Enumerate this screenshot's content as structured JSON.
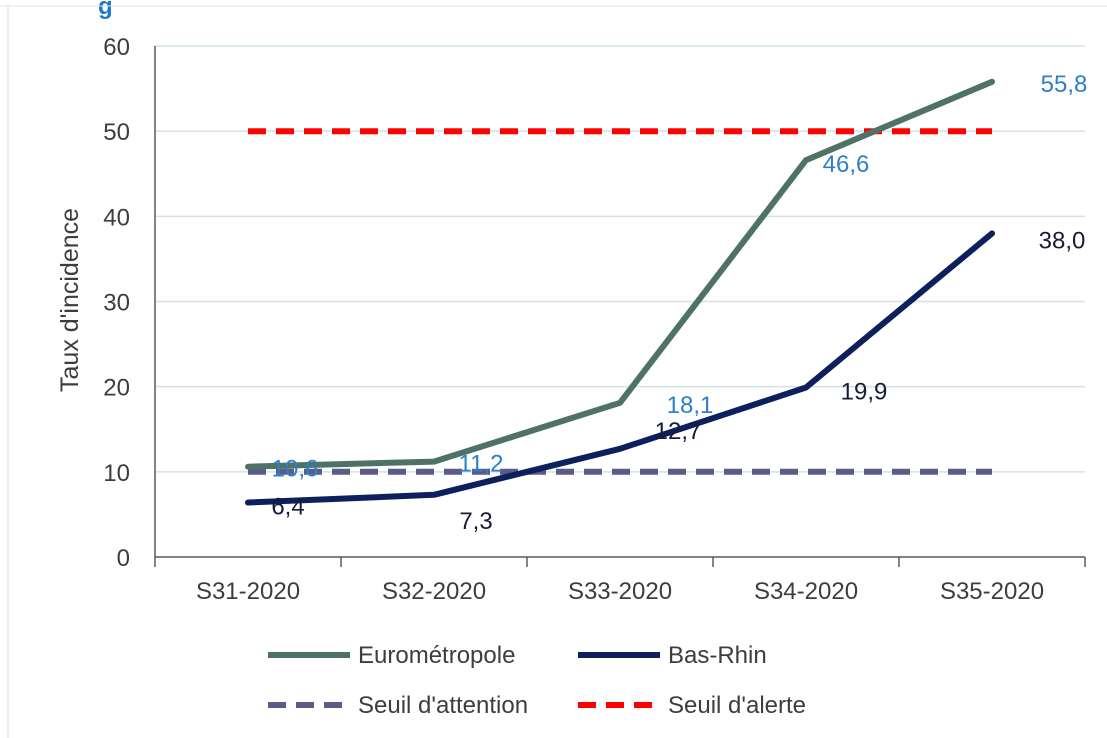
{
  "chart_data": {
    "type": "line",
    "categories": [
      "S31-2020",
      "S32-2020",
      "S33-2020",
      "S34-2020",
      "S35-2020"
    ],
    "ylabel": "Taux d'incidence",
    "ylim": [
      0,
      60
    ],
    "yticks": [
      0,
      10,
      20,
      30,
      40,
      50,
      60
    ],
    "grid": true,
    "legend_position": "bottom",
    "series": [
      {
        "name": "Eurométropole",
        "values": [
          10.6,
          11.2,
          18.1,
          46.6,
          55.8
        ],
        "labels": [
          "10,6",
          "11,2",
          "18,1",
          "46,6",
          "55,8"
        ],
        "color": "#4e7366",
        "label_color": "#2f7fc8",
        "dash": "solid"
      },
      {
        "name": "Bas-Rhin",
        "values": [
          6.4,
          7.3,
          12.7,
          19.9,
          38.0
        ],
        "labels": [
          "6,4",
          "7,3",
          "12,7",
          "19,9",
          "38,0"
        ],
        "color": "#0d1f5c",
        "label_color": "#1a1a3a",
        "dash": "solid"
      },
      {
        "name": "Seuil d'attention",
        "values": [
          10,
          10,
          10,
          10,
          10
        ],
        "color": "#5a5b86",
        "dash": "dashed"
      },
      {
        "name": "Seuil d'alerte",
        "values": [
          50,
          50,
          50,
          50,
          50
        ],
        "color": "#ff0000",
        "dash": "dashed"
      }
    ]
  },
  "colors": {
    "grid": "#d4e3e1",
    "axis": "#5a5a5a",
    "title_accent": "#1f78c8"
  }
}
